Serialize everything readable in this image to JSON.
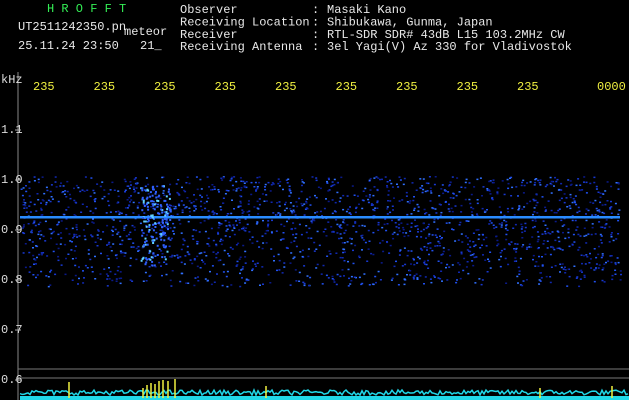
{
  "header": {
    "program": "H R O F F T",
    "file": "UT2511242350.pn",
    "tag": "meteor",
    "datetime": "25.11.24 23:50",
    "frame": "21_"
  },
  "separator": ":",
  "info": [
    {
      "label": "Observer",
      "value": "Masaki Kano"
    },
    {
      "label": "Receiving Location",
      "value": "Shibukawa, Gunma, Japan"
    },
    {
      "label": "Receiver",
      "value": "RTL-SDR SDR# 43dB L15 103.2MHz CW"
    },
    {
      "label": "Receiving Antenna",
      "value": "3el Yagi(V) Az 330 for Vladivostok"
    }
  ],
  "time_labels": [
    "235",
    "235",
    "235",
    "235",
    "235",
    "235",
    "235",
    "235",
    "235",
    "0000"
  ],
  "axis": {
    "unit": "kHz",
    "labels": [
      "1.1",
      "1.0",
      "0.9",
      "0.8",
      "0.7",
      "0.6"
    ]
  }
}
